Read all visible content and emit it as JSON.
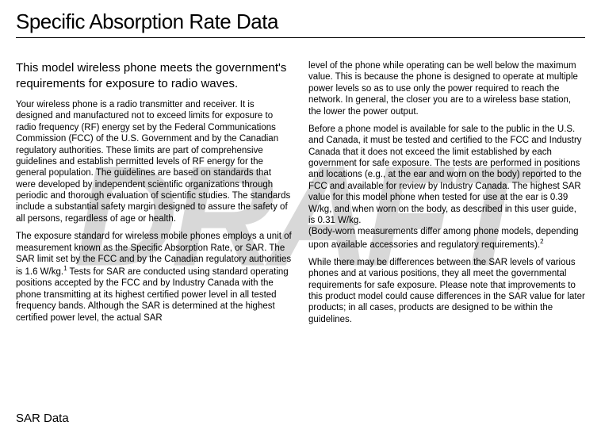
{
  "watermark": "DRAFT",
  "title": "Specific Absorption Rate Data",
  "subheading": "This model wireless phone meets the government's requirements for exposure to radio waves.",
  "col1_p1": "Your wireless phone is a radio transmitter and receiver. It is designed and manufactured not to exceed limits for exposure to radio frequency (RF) energy set by the Federal Communications Commission (FCC) of the U.S. Government and by the Canadian regulatory authorities. These limits are part of comprehensive guidelines and establish permitted levels of RF energy for the general population. The guidelines are based on standards that were developed by independent scientific organizations through periodic and thorough evaluation of scientific studies. The standards include a substantial safety margin designed to assure the safety of all persons, regardless of age or health.",
  "col1_p2_a": "The exposure standard for wireless mobile phones employs a unit of measurement known as the Specific Absorption Rate, or SAR. The SAR limit set by the FCC and by the Canadian regulatory authorities is 1.6 W/kg.",
  "col1_p2_sup": "1",
  "col1_p2_b": " Tests for SAR are conducted using standard operating positions accepted by the FCC and by Industry Canada with the phone transmitting at its highest certified power level in all tested frequency bands. Although the SAR is determined at the highest certified power level, the actual SAR",
  "col2_p1": "level of the phone while operating can be well below the maximum value. This is because the phone is designed to operate at multiple power levels so as to use only the power required to reach the network. In general, the closer you are to a wireless base station, the lower the power output.",
  "col2_p2_a": "Before a phone model is available for sale to the public in the U.S. and Canada, it must be tested and certified to the FCC and Industry Canada that it does not exceed the limit established by each government for safe exposure. The tests are performed in positions and locations (e.g., at the ear and worn on the body) reported to the FCC and available for review by Industry Canada. The highest SAR value for this model phone when tested for use at the ear is 0.39 W/kg, and when worn on the body, as described in this user guide, is 0.31 W/kg.",
  "col2_p2_b": " (Body-worn measurements differ among phone models, depending upon available accessories and regulatory requirements).",
  "col2_p2_sup": "2",
  "col2_p3": "While there may be differences between the SAR levels of various phones and at various positions, they all meet the governmental requirements for safe exposure. Please note that improvements to this product model could cause differences in the SAR value for later products; in all cases, products are designed to be within the guidelines.",
  "footer": "SAR Data",
  "colors": {
    "watermark": "#d8d8d8",
    "text": "#000000",
    "background": "#ffffff"
  },
  "typography": {
    "title_fontsize": 26,
    "subheading_fontsize": 15,
    "body_fontsize": 11.5,
    "footer_fontsize": 15,
    "watermark_fontsize": 180
  }
}
